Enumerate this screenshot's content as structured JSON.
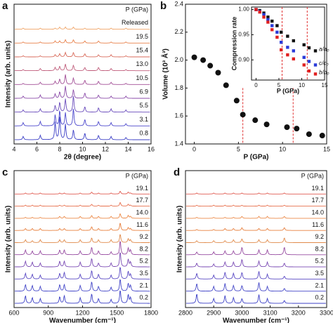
{
  "chart_data": [
    {
      "type": "spectrum",
      "label": "a",
      "xlabel": "2θ (degree)",
      "ylabel": "Intensity (arb. units)",
      "legend_title": "P (GPa)",
      "xlim": [
        4,
        16
      ],
      "xticks": [
        4,
        6,
        8,
        10,
        12,
        14,
        16
      ],
      "x": [
        4.8,
        6.3,
        7.6,
        8.0,
        8.5,
        9.2,
        10.2,
        11.4,
        12.5,
        13.8
      ],
      "series": [
        {
          "name": "0.8",
          "color": "#3b3fc6",
          "values": [
            0.3,
            0.4,
            1.6,
            2.2,
            1.4,
            0.9,
            0.6,
            0.4,
            0.3,
            0.2
          ]
        },
        {
          "name": "3.1",
          "color": "#4b47cc",
          "values": [
            0.3,
            0.4,
            1.0,
            1.4,
            1.2,
            1.6,
            0.6,
            0.4,
            0.3,
            0.2
          ]
        },
        {
          "name": "5.5",
          "color": "#6a4cbc",
          "values": [
            0.2,
            0.3,
            0.6,
            0.9,
            1.2,
            1.5,
            0.5,
            0.4,
            0.3,
            0.2
          ]
        },
        {
          "name": "6.9",
          "color": "#8a4aa8",
          "values": [
            0.2,
            0.3,
            0.4,
            0.6,
            1.1,
            0.8,
            0.5,
            0.3,
            0.2,
            0.2
          ]
        },
        {
          "name": "10.5",
          "color": "#a24e96",
          "values": [
            0.1,
            0.2,
            0.3,
            0.5,
            0.9,
            0.6,
            0.4,
            0.3,
            0.2,
            0.1
          ]
        },
        {
          "name": "13.0",
          "color": "#c05e7c",
          "values": [
            0.1,
            0.2,
            0.3,
            0.4,
            0.6,
            0.5,
            0.3,
            0.3,
            0.2,
            0.1
          ]
        },
        {
          "name": "15.4",
          "color": "#d86a5a",
          "values": [
            0.1,
            0.1,
            0.2,
            0.3,
            0.4,
            0.4,
            0.3,
            0.2,
            0.2,
            0.1
          ]
        },
        {
          "name": "19.5",
          "color": "#e8804a",
          "values": [
            0.1,
            0.1,
            0.2,
            0.2,
            0.3,
            0.3,
            0.2,
            0.2,
            0.1,
            0.1
          ]
        },
        {
          "name": "Released",
          "color": "#f0a466",
          "values": [
            0.1,
            0.1,
            0.1,
            0.2,
            0.2,
            0.2,
            0.1,
            0.1,
            0.1,
            0.1
          ]
        }
      ]
    },
    {
      "type": "scatter",
      "label": "b",
      "xlabel": "P (GPa)",
      "ylabel": "Volume (10³ Å³)",
      "xlim": [
        -1,
        15
      ],
      "xticks": [
        0,
        5,
        10,
        15
      ],
      "ylim": [
        1.4,
        2.4
      ],
      "yticks": [
        1.4,
        1.6,
        1.8,
        {
          "value": 2,
          "label": "2.0"
        },
        2.2,
        2.4
      ],
      "vlines": [
        5.5,
        11.2
      ],
      "vline_color": "#e03030",
      "x": [
        0,
        1,
        1.8,
        2.7,
        3.6,
        4.8,
        5.5,
        6.9,
        8.2,
        10.5,
        11.6,
        13,
        14.5
      ],
      "series": [
        {
          "color": "#111111",
          "values": [
            2.02,
            2.0,
            1.96,
            1.91,
            1.82,
            1.71,
            1.61,
            1.57,
            1.54,
            1.52,
            1.51,
            1.47,
            1.46
          ]
        }
      ]
    },
    {
      "type": "scatter",
      "inset": true,
      "xlabel": "P (GPa)",
      "ylabel": "Compression rate",
      "xlim": [
        -1,
        15
      ],
      "xticks": [
        0,
        5,
        10,
        15
      ],
      "ylim": [
        0.86,
        1.005
      ],
      "yticks": [
        {
          "value": 0.9,
          "label": "0.90"
        },
        0.95,
        {
          "value": 1,
          "label": "1.00"
        }
      ],
      "vlines": [
        5.7,
        11.2
      ],
      "vline_color": "#e03030",
      "x": [
        0,
        0.8,
        1.7,
        2.6,
        3.5,
        4.6,
        5.5,
        6.9,
        8.2,
        10.5,
        11.6,
        13
      ],
      "series": [
        {
          "name": "a/a₀",
          "color": "#111111",
          "values": [
            1.0,
            0.998,
            0.993,
            0.985,
            0.977,
            0.968,
            0.955,
            0.947,
            0.938,
            0.93,
            0.924,
            0.918
          ]
        },
        {
          "name": "c/c₀",
          "color": "#2a3ad8",
          "values": [
            1.0,
            0.996,
            0.99,
            0.98,
            0.968,
            0.955,
            0.935,
            0.925,
            0.918,
            0.905,
            0.897,
            0.89
          ]
        },
        {
          "name": "b/b₀",
          "color": "#e02020",
          "values": [
            1.0,
            0.995,
            0.985,
            0.975,
            0.96,
            0.945,
            0.92,
            0.91,
            0.902,
            0.89,
            0.878,
            0.872
          ]
        }
      ]
    },
    {
      "type": "spectrum",
      "label": "c",
      "xlabel": "Wavenumber (cm⁻¹)",
      "ylabel": "Intensity (arb. units)",
      "legend_title": "P (GPa)",
      "xlim": [
        600,
        1800
      ],
      "xticks": [
        600,
        900,
        1200,
        1500,
        1800
      ],
      "x": [
        700,
        760,
        830,
        1000,
        1040,
        1180,
        1280,
        1340,
        1450,
        1530,
        1600,
        1620
      ],
      "series": [
        {
          "name": "0.2",
          "color": "#3b3fc6",
          "values": [
            0.8,
            0.6,
            0.5,
            0.7,
            0.8,
            0.6,
            1.0,
            0.5,
            0.4,
            1.4,
            0.9,
            0.6
          ]
        },
        {
          "name": "2.1",
          "color": "#4447c8",
          "values": [
            0.7,
            0.6,
            0.5,
            0.7,
            0.7,
            0.6,
            1.0,
            0.5,
            0.4,
            1.3,
            0.8,
            0.6
          ]
        },
        {
          "name": "3.5",
          "color": "#5a4ac4",
          "values": [
            0.6,
            0.5,
            0.4,
            0.6,
            0.7,
            0.5,
            0.9,
            0.5,
            0.4,
            1.3,
            0.8,
            0.5
          ]
        },
        {
          "name": "5.2",
          "color": "#7a4ab4",
          "values": [
            0.6,
            0.5,
            0.4,
            0.6,
            0.6,
            0.5,
            0.9,
            0.4,
            0.4,
            1.6,
            0.8,
            0.5
          ]
        },
        {
          "name": "8.2",
          "color": "#964aa0",
          "values": [
            0.5,
            0.4,
            0.4,
            0.5,
            0.5,
            0.4,
            0.8,
            0.4,
            0.3,
            1.5,
            0.7,
            0.5
          ]
        },
        {
          "name": "9.2",
          "color": "#e08a4a",
          "values": [
            0.3,
            0.2,
            0.3,
            0.3,
            0.3,
            0.3,
            0.5,
            0.3,
            0.3,
            0.9,
            0.4,
            0.3
          ]
        },
        {
          "name": "11.6",
          "color": "#e8803e",
          "values": [
            0.2,
            0.2,
            0.2,
            0.2,
            0.2,
            0.2,
            0.4,
            0.2,
            0.2,
            0.8,
            0.3,
            0.2
          ]
        },
        {
          "name": "14.0",
          "color": "#ec8a48",
          "values": [
            0.1,
            0.1,
            0.1,
            0.2,
            0.2,
            0.2,
            0.3,
            0.2,
            0.2,
            0.5,
            0.3,
            0.2
          ]
        },
        {
          "name": "17.7",
          "color": "#e8704e",
          "values": [
            0.1,
            0.1,
            0.1,
            0.1,
            0.1,
            0.1,
            0.2,
            0.1,
            0.1,
            0.4,
            0.2,
            0.1
          ]
        },
        {
          "name": "19.1",
          "color": "#e05a50",
          "values": [
            0.1,
            0.1,
            0.1,
            0.1,
            0.1,
            0.1,
            0.2,
            0.1,
            0.1,
            0.3,
            0.2,
            0.1
          ]
        }
      ]
    },
    {
      "type": "spectrum",
      "label": "d",
      "xlabel": "Wavenumber (cm⁻¹)",
      "ylabel": "Intensity (arb. units)",
      "legend_title": "P (GPa)",
      "xlim": [
        2800,
        3300
      ],
      "xticks": [
        2800,
        2900,
        3000,
        3100,
        3200,
        3300
      ],
      "x": [
        2840,
        2900,
        2940,
        2970,
        3000,
        3060,
        3090,
        3150
      ],
      "series": [
        {
          "name": "0.2",
          "color": "#3b3fc6",
          "values": [
            1.0,
            0.5,
            0.8,
            0.6,
            0.5,
            0.9,
            0.5,
            0.3
          ]
        },
        {
          "name": "2.1",
          "color": "#4447c8",
          "values": [
            0.8,
            0.5,
            0.8,
            0.6,
            0.6,
            0.9,
            0.5,
            0.3
          ]
        },
        {
          "name": "3.5",
          "color": "#5a4ac4",
          "values": [
            0.6,
            0.4,
            0.7,
            0.6,
            0.7,
            0.8,
            0.5,
            0.3
          ]
        },
        {
          "name": "5.2",
          "color": "#7a4ab4",
          "values": [
            0.4,
            0.3,
            0.5,
            0.5,
            0.8,
            0.6,
            0.5,
            0.4
          ]
        },
        {
          "name": "8.2",
          "color": "#964aa0",
          "values": [
            0.3,
            0.3,
            0.4,
            0.4,
            0.8,
            0.5,
            0.5,
            0.8
          ]
        },
        {
          "name": "9.2",
          "color": "#e08a4a",
          "values": [
            0.2,
            0.2,
            0.2,
            0.3,
            0.4,
            0.3,
            0.3,
            0.5
          ]
        },
        {
          "name": "11.6",
          "color": "#e8803e",
          "values": [
            0.1,
            0.1,
            0.2,
            0.2,
            0.3,
            0.2,
            0.2,
            0.3
          ]
        },
        {
          "name": "14.0",
          "color": "#ec8a48",
          "values": [
            0.1,
            0.1,
            0.1,
            0.1,
            0.2,
            0.2,
            0.2,
            0.2
          ]
        },
        {
          "name": "17.7",
          "color": "#e8704e",
          "values": [
            0.1,
            0.1,
            0.1,
            0.1,
            0.1,
            0.1,
            0.1,
            0.1
          ]
        },
        {
          "name": "19.1",
          "color": "#e05a50",
          "values": [
            0.1,
            0.1,
            0.1,
            0.1,
            0.1,
            0.1,
            0.1,
            0.1
          ]
        }
      ]
    }
  ]
}
